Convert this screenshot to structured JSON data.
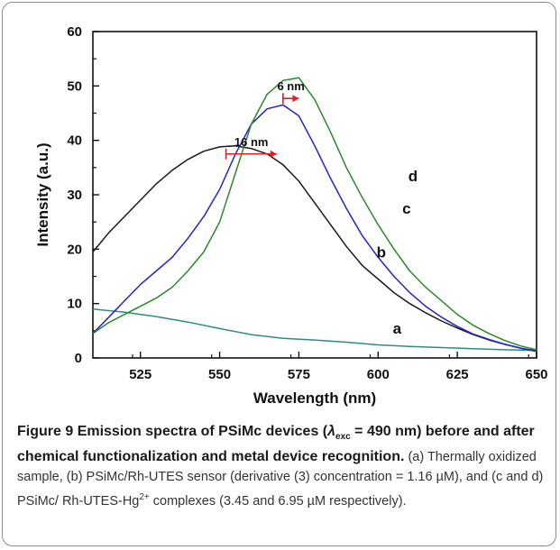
{
  "chart_data": {
    "type": "line",
    "xlabel": "Wavelength (nm)",
    "ylabel": "Intensity (a.u.)",
    "xlim": [
      510,
      650
    ],
    "ylim": [
      0,
      60
    ],
    "xticks": [
      525,
      550,
      575,
      600,
      625,
      650
    ],
    "yticks": [
      0,
      10,
      20,
      30,
      40,
      50,
      60
    ],
    "grid": false,
    "legend": "none",
    "series": [
      {
        "name": "a",
        "color": "#2e8b8b",
        "x": [
          510,
          520,
          530,
          540,
          550,
          560,
          570,
          580,
          590,
          600,
          610,
          620,
          630,
          640,
          650
        ],
        "y": [
          9.0,
          8.4,
          7.6,
          6.6,
          5.4,
          4.3,
          3.6,
          3.3,
          2.9,
          2.4,
          2.1,
          1.9,
          1.7,
          1.5,
          1.4
        ]
      },
      {
        "name": "b",
        "color": "#1a1a1a",
        "x": [
          510,
          515,
          520,
          525,
          530,
          535,
          540,
          545,
          550,
          555,
          560,
          565,
          570,
          575,
          580,
          585,
          590,
          595,
          600,
          605,
          610,
          615,
          620,
          625,
          630,
          635,
          640,
          645,
          650
        ],
        "y": [
          19.5,
          23.0,
          26.0,
          29.0,
          32.0,
          34.5,
          36.5,
          38.0,
          38.8,
          39.0,
          38.5,
          37.5,
          35.5,
          32.5,
          28.5,
          24.5,
          20.5,
          17.0,
          14.5,
          12.0,
          10.0,
          8.3,
          6.8,
          5.5,
          4.3,
          3.3,
          2.5,
          1.8,
          1.3
        ]
      },
      {
        "name": "c",
        "color": "#2323d0",
        "x": [
          510,
          515,
          520,
          525,
          530,
          535,
          540,
          545,
          550,
          555,
          560,
          565,
          570,
          575,
          580,
          585,
          590,
          595,
          600,
          605,
          610,
          615,
          620,
          625,
          630,
          635,
          640,
          645,
          650
        ],
        "y": [
          4.5,
          7.5,
          10.5,
          13.5,
          16.0,
          18.5,
          22.0,
          26.0,
          31.0,
          37.5,
          43.0,
          45.8,
          46.5,
          44.5,
          39.0,
          33.0,
          27.5,
          22.5,
          18.5,
          15.0,
          12.0,
          9.5,
          7.5,
          5.8,
          4.4,
          3.4,
          2.5,
          1.8,
          1.2
        ]
      },
      {
        "name": "d",
        "color": "#2a8a2a",
        "x": [
          510,
          515,
          520,
          525,
          530,
          535,
          540,
          545,
          550,
          555,
          560,
          565,
          570,
          575,
          580,
          585,
          590,
          595,
          600,
          605,
          610,
          615,
          620,
          625,
          630,
          635,
          640,
          645,
          650
        ],
        "y": [
          4.5,
          6.5,
          8.0,
          9.5,
          11.0,
          13.0,
          16.0,
          19.5,
          25.0,
          34.0,
          43.0,
          48.5,
          51.0,
          51.5,
          47.5,
          41.5,
          35.0,
          29.5,
          24.5,
          20.0,
          16.0,
          13.0,
          10.5,
          8.0,
          6.0,
          4.5,
          3.2,
          2.2,
          1.5
        ]
      }
    ],
    "annotations": [
      {
        "text": "16 nm",
        "x_from": 552,
        "x_to": 568,
        "y": 37.5
      },
      {
        "text": "6 nm",
        "x_from": 570,
        "x_to": 575,
        "y": 47.7
      }
    ]
  },
  "caption": {
    "label": "Figure 9",
    "title_pre": "Emission spectra of PSiMc devices (",
    "lambda": "λ",
    "lambda_sub": "exc",
    "title_post": " = 490 nm) before and after chemical functionalization and metal device recognition.",
    "body_1": " (a) Thermally oxidized sample, (b) PSiMc/Rh-UTES sensor (derivative (3) concentration = 1.16 µM), and (c and d) PSiMc/ Rh-UTES-Hg",
    "body_sup": "2+",
    "body_2": " complexes (3.45 and 6.95 µM respectively)."
  }
}
